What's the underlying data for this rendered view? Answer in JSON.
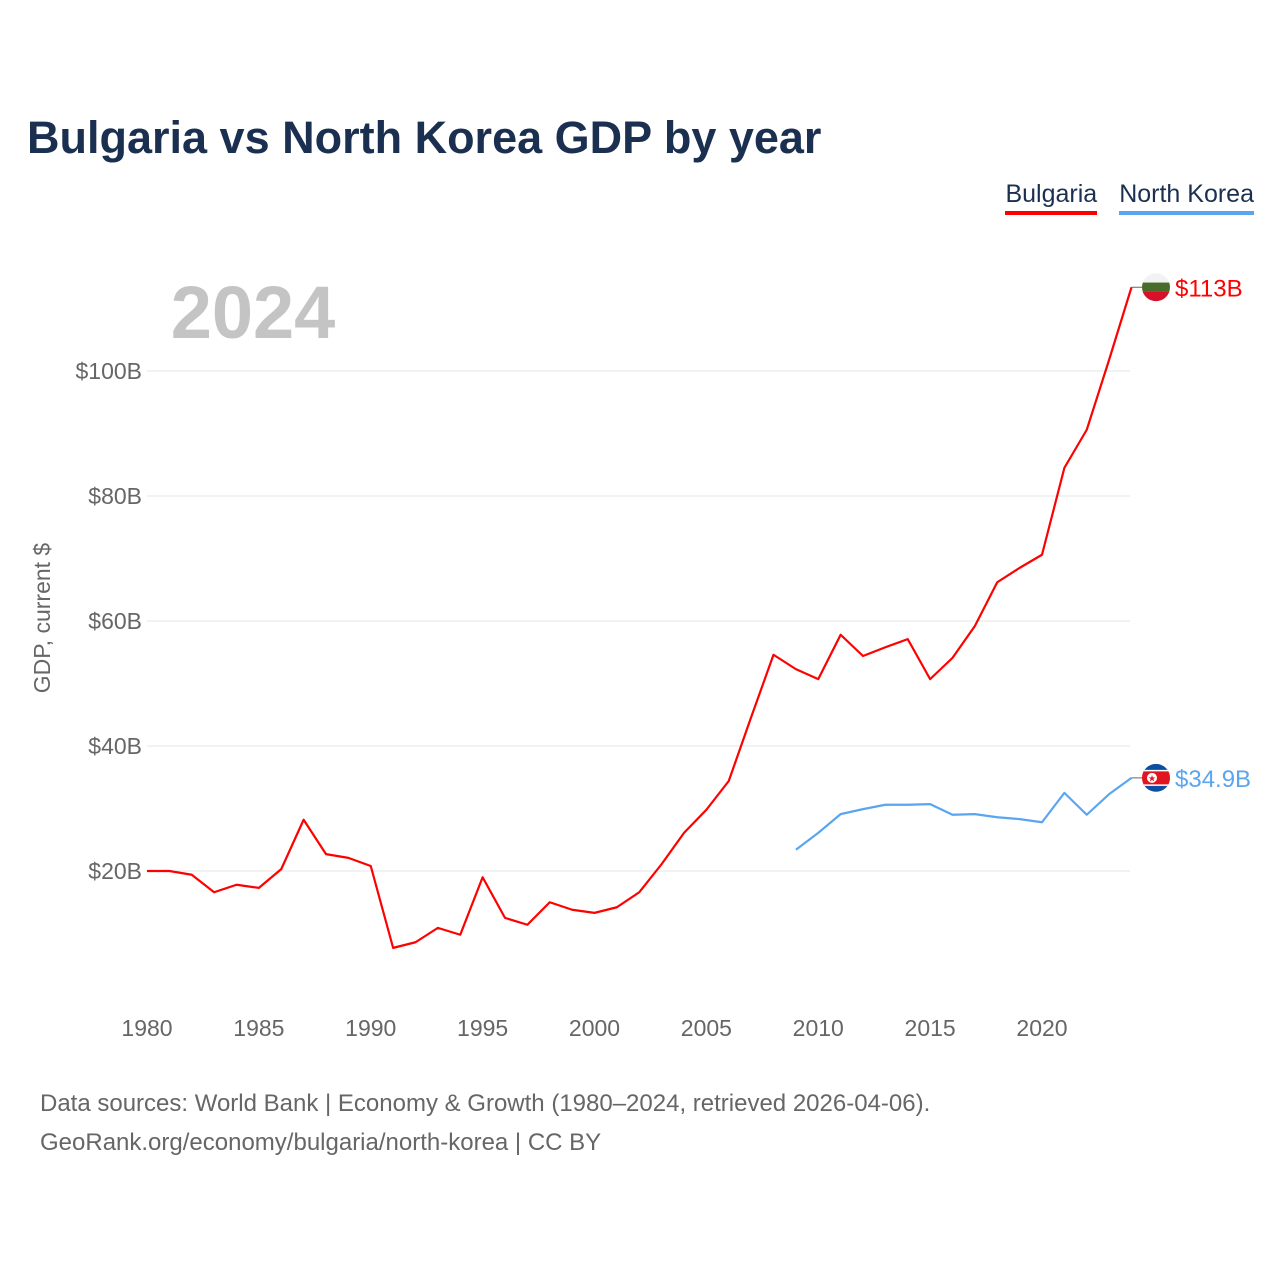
{
  "title": "Bulgaria vs North Korea GDP by year",
  "year_label": "2024",
  "source_line1": "Data sources: World Bank | Economy & Growth (1980–2024, retrieved 2026-04-06).",
  "source_line2": "GeoRank.org/economy/bulgaria/north-korea | CC BY",
  "chart_data": {
    "type": "line",
    "title": "Bulgaria vs North Korea GDP by year",
    "xlabel": "",
    "ylabel": "GDP, current $",
    "xlim": [
      1980,
      2024
    ],
    "ylim": [
      0,
      113
    ],
    "xticks": [
      1980,
      1985,
      1990,
      1995,
      2000,
      2005,
      2010,
      2015,
      2020
    ],
    "xtick_labels": [
      "1980",
      "1985",
      "1990",
      "1995",
      "2000",
      "2005",
      "2010",
      "2015",
      "2020"
    ],
    "yticks": [
      20,
      40,
      60,
      80,
      100
    ],
    "ytick_labels": [
      "$20B",
      "$40B",
      "$60B",
      "$80B",
      "$100B"
    ],
    "grid": true,
    "legend_position": "top-right",
    "series": [
      {
        "name": "Bulgaria",
        "color": "#ff0000",
        "end_label": "$113B",
        "x": [
          1980,
          1981,
          1982,
          1983,
          1984,
          1985,
          1986,
          1987,
          1988,
          1989,
          1990,
          1991,
          1992,
          1993,
          1994,
          1995,
          1996,
          1997,
          1998,
          1999,
          2000,
          2001,
          2002,
          2003,
          2004,
          2005,
          2006,
          2007,
          2008,
          2009,
          2010,
          2011,
          2012,
          2013,
          2014,
          2015,
          2016,
          2017,
          2018,
          2019,
          2020,
          2021,
          2022,
          2023,
          2024
        ],
        "values": [
          20.0,
          20.0,
          19.4,
          16.6,
          17.8,
          17.3,
          20.3,
          28.2,
          22.7,
          22.1,
          20.8,
          7.7,
          8.6,
          10.9,
          9.8,
          19.0,
          12.5,
          11.4,
          15.0,
          13.8,
          13.3,
          14.2,
          16.6,
          21.1,
          26.1,
          29.8,
          34.4,
          44.6,
          54.6,
          52.3,
          50.7,
          57.8,
          54.4,
          55.8,
          57.1,
          50.7,
          54.1,
          59.2,
          66.2,
          68.5,
          70.6,
          84.5,
          90.6,
          101.8,
          113.4
        ]
      },
      {
        "name": "North Korea",
        "color": "#5aa5f0",
        "end_label": "$34.9B",
        "x": [
          2009,
          2010,
          2011,
          2012,
          2013,
          2014,
          2015,
          2016,
          2017,
          2018,
          2019,
          2020,
          2021,
          2022,
          2023,
          2024
        ],
        "values": [
          23.4,
          26.1,
          29.1,
          29.9,
          30.6,
          30.6,
          30.7,
          29.0,
          29.1,
          28.6,
          28.3,
          27.8,
          32.5,
          29.0,
          32.3,
          34.9
        ]
      }
    ]
  }
}
